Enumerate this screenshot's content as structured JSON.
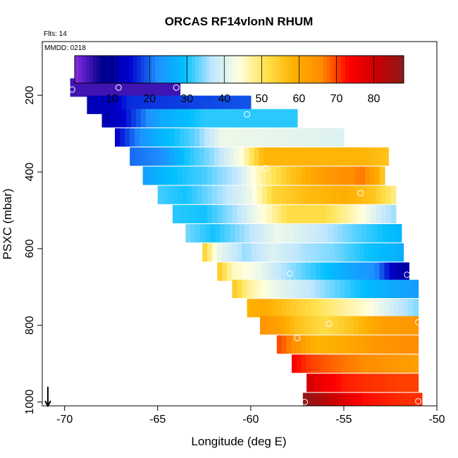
{
  "chart_data": {
    "type": "heatmap",
    "title": "ORCAS RF14vlonN RHUM",
    "flights_label": "Flts: 14",
    "date_label": "MMDD: 0218",
    "xlabel": "Longitude (deg E)",
    "ylabel": "PSXC (mbar)",
    "xlim": [
      -71.2,
      -50
    ],
    "ylim": [
      1010,
      60
    ],
    "x_ticks": [
      -70,
      -65,
      -60,
      -55,
      -50
    ],
    "x_tick_labels": [
      "-70",
      "-65",
      "-60",
      "-55",
      "-50"
    ],
    "y_ticks": [
      200,
      400,
      600,
      800,
      1000
    ],
    "y_tick_labels": [
      "200",
      "400",
      "600",
      "800",
      "1000"
    ],
    "colorbar": {
      "min": 0,
      "max": 88,
      "ticks": [
        10,
        20,
        30,
        40,
        50,
        60,
        70,
        80
      ],
      "tick_labels": [
        "10",
        "20",
        "30",
        "40",
        "50",
        "60",
        "70",
        "80"
      ],
      "colors": [
        "#8a2be2",
        "#00008b",
        "#0000cd",
        "#1e90ff",
        "#00bfff",
        "#bfe6ff",
        "#ffffe0",
        "#ffe14d",
        "#ffb000",
        "#ff8c00",
        "#ff0000",
        "#cc0000",
        "#8b1a1a"
      ]
    },
    "bands": [
      {
        "pressure": 180,
        "lon_start": -69.7,
        "lon_end": -63.8,
        "points": [
          [
            -69.7,
            4
          ],
          [
            -63.8,
            4
          ]
        ]
      },
      {
        "pressure": 225,
        "lon_start": -68.8,
        "lon_end": -60.0,
        "points": [
          [
            -68.8,
            12
          ],
          [
            -67.5,
            13
          ],
          [
            -66.5,
            17
          ],
          [
            -60.0,
            19
          ]
        ]
      },
      {
        "pressure": 260,
        "lon_start": -68.0,
        "lon_end": -57.5,
        "points": [
          [
            -68.0,
            11
          ],
          [
            -66.8,
            15
          ],
          [
            -64.8,
            26
          ],
          [
            -62.5,
            31
          ],
          [
            -57.5,
            31
          ]
        ]
      },
      {
        "pressure": 310,
        "lon_start": -67.3,
        "lon_end": -55.0,
        "points": [
          [
            -67.3,
            14
          ],
          [
            -66.0,
            22
          ],
          [
            -64.8,
            28
          ],
          [
            -63.0,
            33
          ],
          [
            -61.5,
            42
          ],
          [
            -55.0,
            40
          ]
        ]
      },
      {
        "pressure": 360,
        "lon_start": -66.5,
        "lon_end": -52.6,
        "points": [
          [
            -66.5,
            20
          ],
          [
            -64.8,
            22
          ],
          [
            -63.5,
            30
          ],
          [
            -62.0,
            35
          ],
          [
            -60.5,
            44
          ],
          [
            -59.3,
            58
          ],
          [
            -57.0,
            58
          ],
          [
            -54.0,
            58
          ],
          [
            -52.6,
            56
          ]
        ]
      },
      {
        "pressure": 410,
        "lon_start": -65.8,
        "lon_end": -52.8,
        "points": [
          [
            -65.8,
            24
          ],
          [
            -64.5,
            29
          ],
          [
            -62.5,
            32
          ],
          [
            -60.8,
            37
          ],
          [
            -59.3,
            48
          ],
          [
            -58.0,
            55
          ],
          [
            -56.0,
            63
          ],
          [
            -54.0,
            67
          ],
          [
            -53.0,
            58
          ],
          [
            -52.8,
            50
          ]
        ]
      },
      {
        "pressure": 460,
        "lon_start": -65.0,
        "lon_end": -52.2,
        "points": [
          [
            -65.0,
            32
          ],
          [
            -63.5,
            30
          ],
          [
            -61.5,
            36
          ],
          [
            -60.0,
            42
          ],
          [
            -58.8,
            53
          ],
          [
            -57.0,
            57
          ],
          [
            -55.0,
            59
          ],
          [
            -53.5,
            56
          ],
          [
            -52.2,
            48
          ]
        ]
      },
      {
        "pressure": 510,
        "lon_start": -64.2,
        "lon_end": -52.2,
        "points": [
          [
            -64.2,
            31
          ],
          [
            -62.5,
            30
          ],
          [
            -60.8,
            36
          ],
          [
            -59.0,
            46
          ],
          [
            -58.0,
            52
          ],
          [
            -56.0,
            52
          ],
          [
            -54.0,
            44
          ],
          [
            -53.0,
            38
          ],
          [
            -52.2,
            35
          ]
        ]
      },
      {
        "pressure": 560,
        "lon_start": -63.5,
        "lon_end": -51.9,
        "points": [
          [
            -63.5,
            34
          ],
          [
            -62.0,
            30
          ],
          [
            -60.2,
            36
          ],
          [
            -58.5,
            42
          ],
          [
            -56.5,
            38
          ],
          [
            -54.5,
            33
          ],
          [
            -53.0,
            30
          ],
          [
            -51.9,
            28
          ]
        ]
      },
      {
        "pressure": 610,
        "lon_start": -62.6,
        "lon_end": -51.8,
        "points": [
          [
            -62.6,
            55
          ],
          [
            -61.8,
            42
          ],
          [
            -60.3,
            35
          ],
          [
            -58.8,
            40
          ],
          [
            -57.2,
            36
          ],
          [
            -55.5,
            34
          ],
          [
            -53.8,
            30
          ],
          [
            -52.5,
            28
          ],
          [
            -51.8,
            26
          ]
        ]
      },
      {
        "pressure": 660,
        "lon_start": -61.8,
        "lon_end": -51.5,
        "points": [
          [
            -61.8,
            56
          ],
          [
            -61.0,
            46
          ],
          [
            -59.6,
            42
          ],
          [
            -58.2,
            36
          ],
          [
            -56.5,
            31
          ],
          [
            -54.8,
            26
          ],
          [
            -53.3,
            22
          ],
          [
            -52.2,
            12
          ],
          [
            -51.5,
            10
          ]
        ]
      },
      {
        "pressure": 705,
        "lon_start": -61.0,
        "lon_end": -51.0,
        "points": [
          [
            -61.0,
            56
          ],
          [
            -60.2,
            48
          ],
          [
            -58.8,
            42
          ],
          [
            -57.2,
            38
          ],
          [
            -55.8,
            34
          ],
          [
            -54.2,
            30
          ],
          [
            -52.5,
            26
          ],
          [
            -51.0,
            24
          ]
        ]
      },
      {
        "pressure": 755,
        "lon_start": -60.2,
        "lon_end": -51.0,
        "points": [
          [
            -60.2,
            58
          ],
          [
            -59.4,
            60
          ],
          [
            -58.2,
            56
          ],
          [
            -56.8,
            52
          ],
          [
            -55.2,
            48
          ],
          [
            -53.6,
            44
          ],
          [
            -52.2,
            38
          ],
          [
            -51.0,
            34
          ]
        ]
      },
      {
        "pressure": 800,
        "lon_start": -59.5,
        "lon_end": -51.0,
        "points": [
          [
            -59.5,
            65
          ],
          [
            -58.5,
            62
          ],
          [
            -57.5,
            56
          ],
          [
            -56.0,
            52
          ],
          [
            -54.5,
            56
          ],
          [
            -53.0,
            62
          ],
          [
            -51.0,
            64
          ]
        ]
      },
      {
        "pressure": 850,
        "lon_start": -58.6,
        "lon_end": -51.0,
        "points": [
          [
            -58.6,
            70
          ],
          [
            -57.8,
            66
          ],
          [
            -56.5,
            58
          ],
          [
            -55.0,
            60
          ],
          [
            -53.0,
            64
          ],
          [
            -51.0,
            66
          ]
        ]
      },
      {
        "pressure": 900,
        "lon_start": -57.8,
        "lon_end": -51.0,
        "points": [
          [
            -57.8,
            74
          ],
          [
            -56.8,
            70
          ],
          [
            -55.5,
            68
          ],
          [
            -54.0,
            66
          ],
          [
            -52.5,
            64
          ],
          [
            -51.0,
            62
          ]
        ]
      },
      {
        "pressure": 950,
        "lon_start": -57.0,
        "lon_end": -51.0,
        "points": [
          [
            -57.0,
            80
          ],
          [
            -56.0,
            75
          ],
          [
            -55.0,
            72
          ],
          [
            -53.8,
            71
          ],
          [
            -52.0,
            70
          ],
          [
            -51.0,
            70
          ]
        ]
      },
      {
        "pressure": 1000,
        "lon_start": -57.2,
        "lon_end": -50.8,
        "points": [
          [
            -57.2,
            88
          ],
          [
            -56.0,
            83
          ],
          [
            -55.0,
            78
          ],
          [
            -54.0,
            73
          ],
          [
            -53.0,
            72
          ],
          [
            -51.8,
            71
          ],
          [
            -50.8,
            71
          ]
        ]
      }
    ],
    "markers": [
      [
        -69.6,
        185
      ],
      [
        -67.1,
        180
      ],
      [
        -64.0,
        180
      ],
      [
        -60.2,
        250
      ],
      [
        -59.2,
        390
      ],
      [
        -54.1,
        455
      ],
      [
        -57.9,
        665
      ],
      [
        -51.6,
        668
      ],
      [
        -55.8,
        796
      ],
      [
        -57.5,
        833
      ],
      [
        -51.0,
        792
      ],
      [
        -57.1,
        1000
      ],
      [
        -51.0,
        998
      ]
    ],
    "arrow": {
      "lon": -70.9,
      "pressure_from": 960,
      "pressure_to": 1010
    }
  }
}
